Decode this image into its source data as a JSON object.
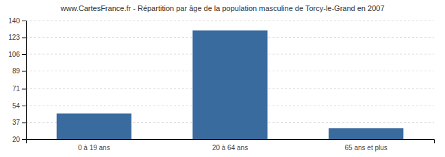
{
  "chart_data": {
    "type": "bar",
    "title": "www.CartesFrance.fr - Répartition par âge de la population masculine de Torcy-le-Grand en 2007",
    "categories": [
      "0 à 19 ans",
      "20 à 64 ans",
      "65 ans et plus"
    ],
    "values": [
      46,
      130,
      31
    ],
    "color": "#3a6b9e",
    "ylim": [
      20,
      140
    ],
    "yticks": [
      20,
      37,
      54,
      71,
      89,
      106,
      123,
      140
    ],
    "grid": true
  }
}
